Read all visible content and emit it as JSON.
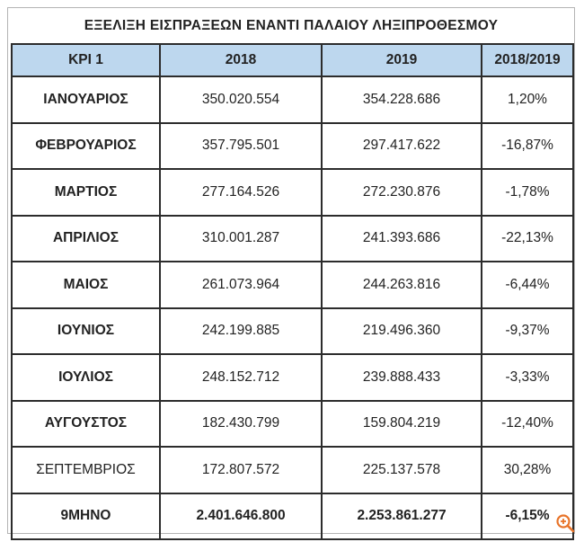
{
  "chart_data": {
    "type": "table",
    "title": "ΕΞΕΛΙΞΗ ΕΙΣΠΡΑΞΕΩΝ ΕΝΑΝΤΙ ΠΑΛΑΙΟΥ ΛΗΞΙΠΡΟΘΕΣΜΟΥ",
    "columns": [
      "KPI 1",
      "2018",
      "2019",
      "2018/2019"
    ],
    "rows": [
      {
        "label": "ΙΑΝΟΥΑΡΙΟΣ",
        "v2018": "350.020.554",
        "v2019": "354.228.686",
        "change": "1,20%",
        "negative": false,
        "bold_label": true
      },
      {
        "label": "ΦΕΒΡΟΥΑΡΙΟΣ",
        "v2018": "357.795.501",
        "v2019": "297.417.622",
        "change": "-16,87%",
        "negative": true,
        "bold_label": true
      },
      {
        "label": "ΜΑΡΤΙΟΣ",
        "v2018": "277.164.526",
        "v2019": "272.230.876",
        "change": "-1,78%",
        "negative": true,
        "bold_label": true
      },
      {
        "label": "ΑΠΡΙΛΙΟΣ",
        "v2018": "310.001.287",
        "v2019": "241.393.686",
        "change": "-22,13%",
        "negative": true,
        "bold_label": true
      },
      {
        "label": "ΜΑΙΟΣ",
        "v2018": "261.073.964",
        "v2019": "244.263.816",
        "change": "-6,44%",
        "negative": true,
        "bold_label": true
      },
      {
        "label": "ΙΟΥΝΙΟΣ",
        "v2018": "242.199.885",
        "v2019": "219.496.360",
        "change": "-9,37%",
        "negative": true,
        "bold_label": true
      },
      {
        "label": "ΙΟΥΛΙΟΣ",
        "v2018": "248.152.712",
        "v2019": "239.888.433",
        "change": "-3,33%",
        "negative": true,
        "bold_label": true
      },
      {
        "label": "ΑΥΓΟΥΣΤΟΣ",
        "v2018": "182.430.799",
        "v2019": "159.804.219",
        "change": "-12,40%",
        "negative": true,
        "bold_label": true
      },
      {
        "label": "ΣΕΠΤΕΜΒΡΙΟΣ",
        "v2018": "172.807.572",
        "v2019": "225.137.578",
        "change": "30,28%",
        "negative": false,
        "bold_label": false
      }
    ],
    "total": {
      "label": "9ΜΗΝΟ",
      "v2018": "2.401.646.800",
      "v2019": "2.253.861.277",
      "change": "-6,15%",
      "negative": true
    }
  },
  "colors": {
    "header_bg": "#bdd7ee",
    "negative": "#e02a2a",
    "text": "#222222",
    "zoom_icon": "#e8742a"
  },
  "icons": {
    "zoom": "zoom-in-icon"
  }
}
